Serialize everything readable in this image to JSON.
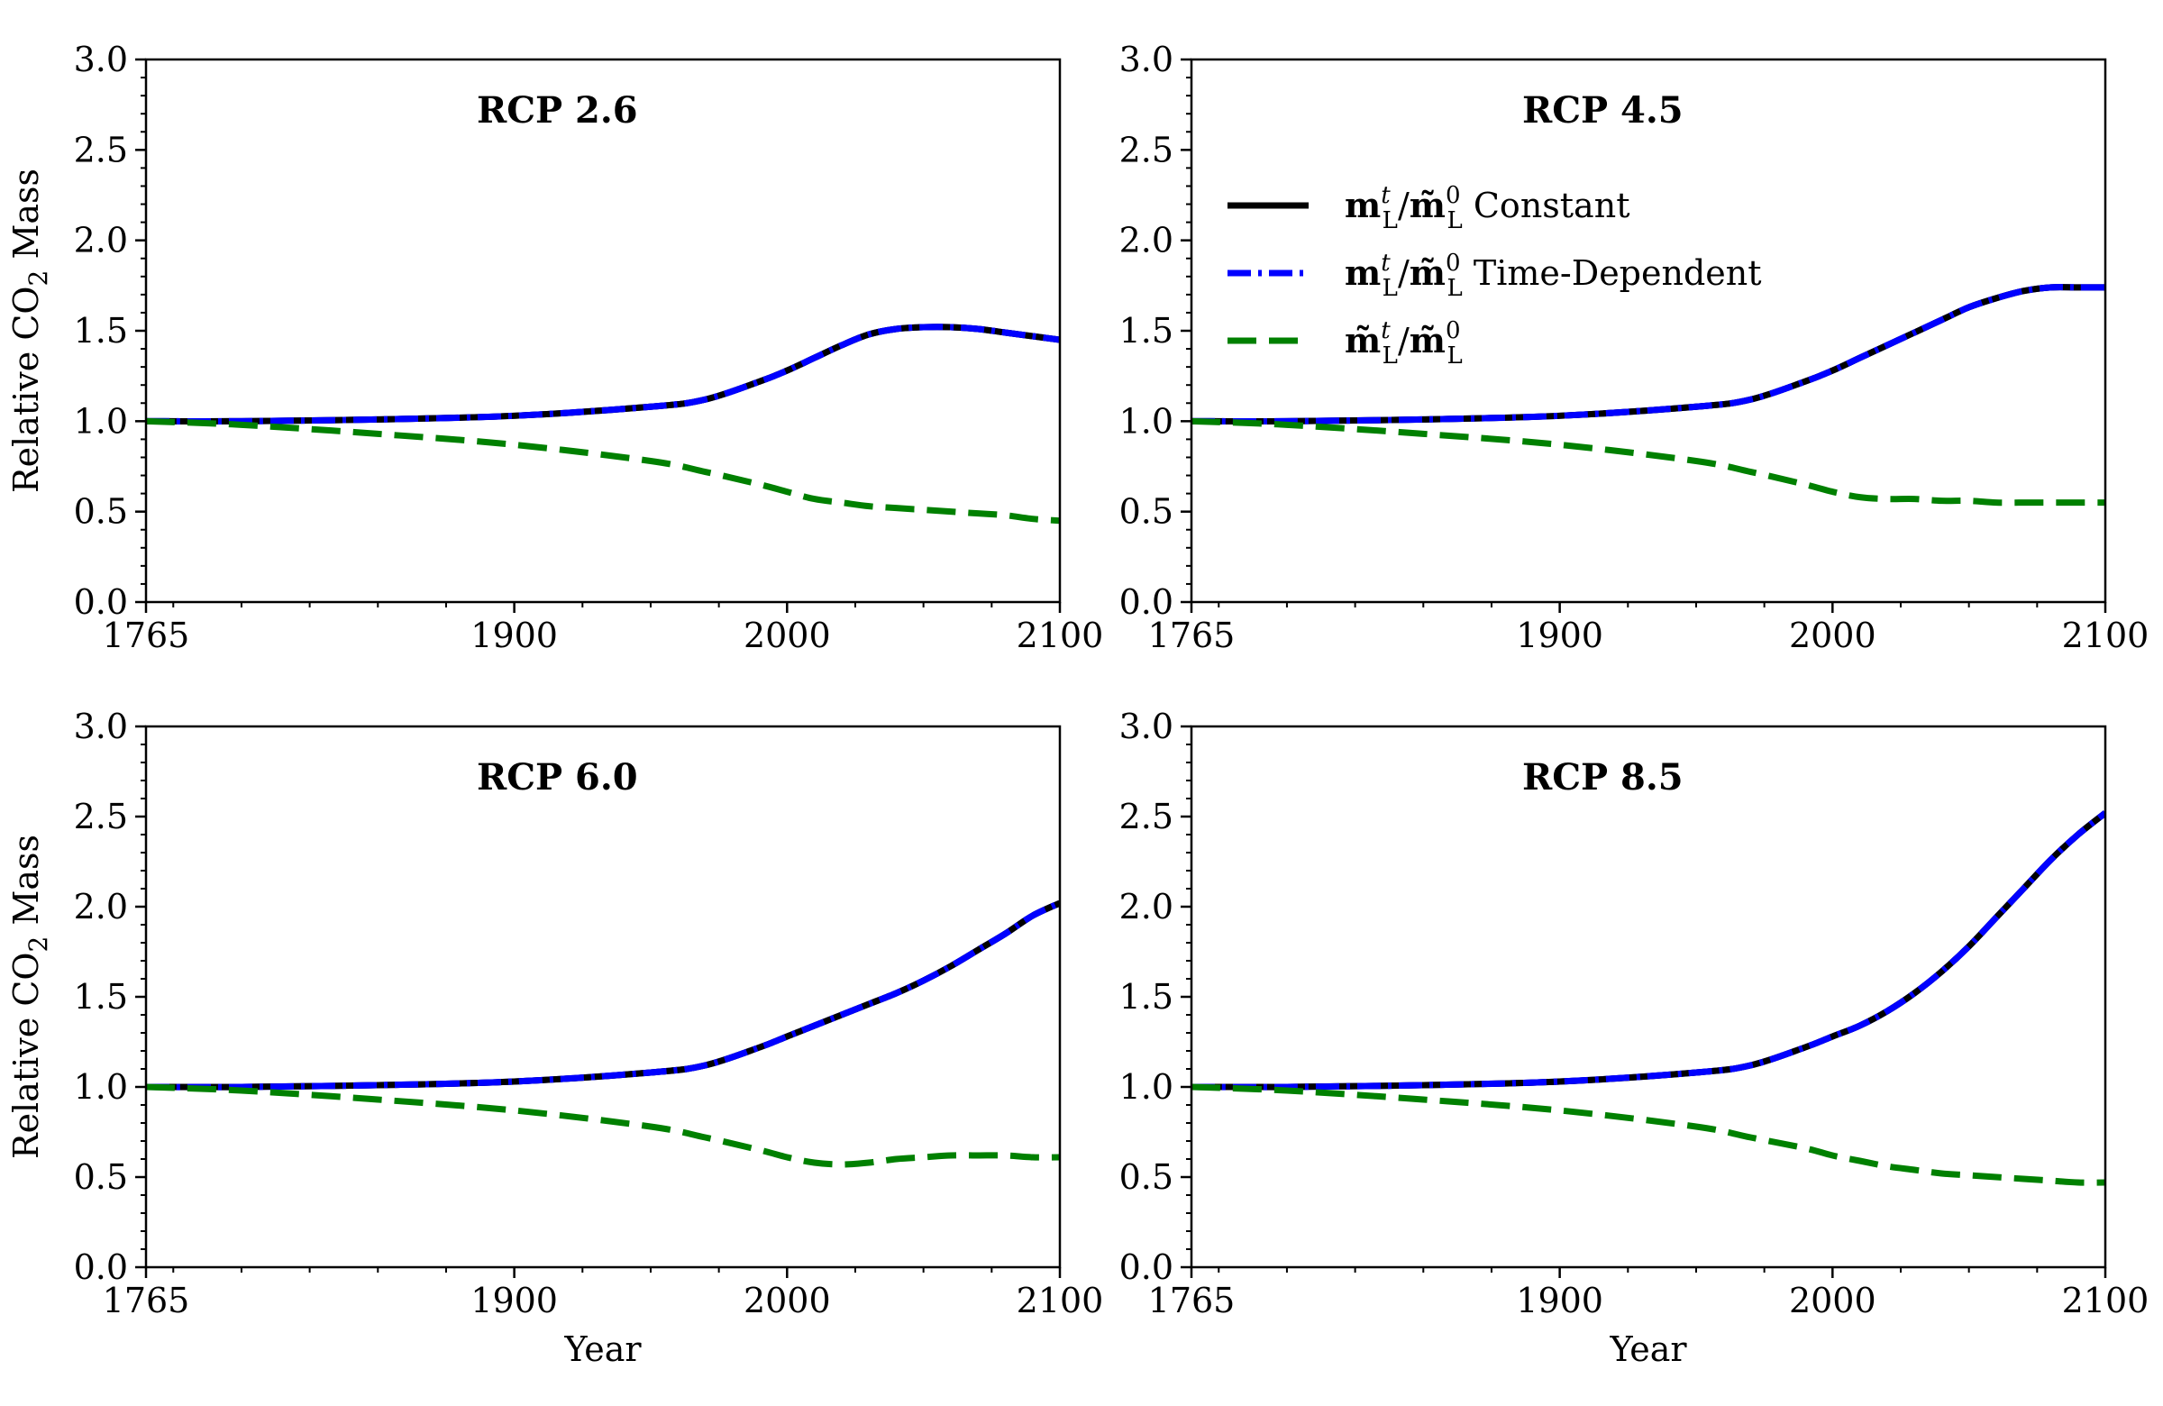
{
  "colors": {
    "constant": "#000000",
    "time_dependent": "#0000ff",
    "ratio": "#008000",
    "axis": "#000000",
    "background": "#ffffff"
  },
  "legend": {
    "items": [
      {
        "series": "constant",
        "math": "m_L^t / m~_L^0",
        "suffix": " Constant"
      },
      {
        "series": "time_dependent",
        "math": "m_L^t / m~_L^0",
        "suffix": " Time-Dependent"
      },
      {
        "series": "ratio",
        "math": "m~_L^t / m~_L^0",
        "suffix": ""
      }
    ],
    "placement": "upper-left of RCP 4.5 panel"
  },
  "chart_data": [
    {
      "type": "line",
      "title": "RCP 2.6",
      "xlabel": "",
      "ylabel": "Relative CO2 Mass",
      "ylabel_main": "Relative CO",
      "ylabel_sub": "2",
      "ylabel_tail": " Mass",
      "xlim": [
        1765,
        2100
      ],
      "ylim": [
        0.0,
        3.0
      ],
      "xticks": [
        1765,
        1900,
        2000,
        2100
      ],
      "yticks": [
        "0.0",
        "0.5",
        "1.0",
        "1.5",
        "2.0",
        "2.5",
        "3.0"
      ],
      "x": [
        1765,
        1800,
        1850,
        1900,
        1950,
        1970,
        1990,
        2000,
        2010,
        2020,
        2030,
        2040,
        2050,
        2060,
        2070,
        2080,
        2090,
        2100
      ],
      "series": [
        {
          "name": "m_L^t/m~_L^0 Constant",
          "key": "constant",
          "values": [
            1.0,
            1.0,
            1.01,
            1.03,
            1.08,
            1.12,
            1.22,
            1.28,
            1.35,
            1.42,
            1.48,
            1.51,
            1.52,
            1.52,
            1.51,
            1.49,
            1.47,
            1.45
          ]
        },
        {
          "name": "m_L^t/m~_L^0 Time-Dependent",
          "key": "time_dependent",
          "values": [
            1.0,
            1.0,
            1.01,
            1.03,
            1.08,
            1.12,
            1.22,
            1.28,
            1.35,
            1.42,
            1.48,
            1.51,
            1.52,
            1.52,
            1.51,
            1.49,
            1.47,
            1.45
          ]
        },
        {
          "name": "m~_L^t/m~_L^0",
          "key": "ratio",
          "values": [
            1.0,
            0.98,
            0.93,
            0.87,
            0.78,
            0.72,
            0.65,
            0.61,
            0.57,
            0.55,
            0.53,
            0.52,
            0.51,
            0.5,
            0.49,
            0.48,
            0.46,
            0.45
          ]
        }
      ]
    },
    {
      "type": "line",
      "title": "RCP 4.5",
      "xlabel": "",
      "ylabel": "",
      "xlim": [
        1765,
        2100
      ],
      "ylim": [
        0.0,
        3.0
      ],
      "xticks": [
        1765,
        1900,
        2000,
        2100
      ],
      "yticks": [
        "0.0",
        "0.5",
        "1.0",
        "1.5",
        "2.0",
        "2.5",
        "3.0"
      ],
      "x": [
        1765,
        1800,
        1850,
        1900,
        1950,
        1970,
        1990,
        2000,
        2010,
        2020,
        2030,
        2040,
        2050,
        2060,
        2070,
        2080,
        2090,
        2100
      ],
      "series": [
        {
          "name": "m_L^t/m~_L^0 Constant",
          "key": "constant",
          "values": [
            1.0,
            1.0,
            1.01,
            1.03,
            1.08,
            1.12,
            1.22,
            1.28,
            1.35,
            1.42,
            1.49,
            1.56,
            1.63,
            1.68,
            1.72,
            1.74,
            1.74,
            1.74
          ]
        },
        {
          "name": "m_L^t/m~_L^0 Time-Dependent",
          "key": "time_dependent",
          "values": [
            1.0,
            1.0,
            1.01,
            1.03,
            1.08,
            1.12,
            1.22,
            1.28,
            1.35,
            1.42,
            1.49,
            1.56,
            1.63,
            1.68,
            1.72,
            1.74,
            1.74,
            1.74
          ]
        },
        {
          "name": "m~_L^t/m~_L^0",
          "key": "ratio",
          "values": [
            1.0,
            0.98,
            0.93,
            0.87,
            0.78,
            0.72,
            0.65,
            0.61,
            0.58,
            0.57,
            0.57,
            0.56,
            0.56,
            0.55,
            0.55,
            0.55,
            0.55,
            0.55
          ]
        }
      ]
    },
    {
      "type": "line",
      "title": "RCP 6.0",
      "xlabel": "Year",
      "ylabel": "Relative CO2 Mass",
      "ylabel_main": "Relative CO",
      "ylabel_sub": "2",
      "ylabel_tail": " Mass",
      "xlim": [
        1765,
        2100
      ],
      "ylim": [
        0.0,
        3.0
      ],
      "xticks": [
        1765,
        1900,
        2000,
        2100
      ],
      "yticks": [
        "0.0",
        "0.5",
        "1.0",
        "1.5",
        "2.0",
        "2.5",
        "3.0"
      ],
      "x": [
        1765,
        1800,
        1850,
        1900,
        1950,
        1970,
        1990,
        2000,
        2010,
        2020,
        2030,
        2040,
        2050,
        2060,
        2070,
        2080,
        2090,
        2100
      ],
      "series": [
        {
          "name": "m_L^t/m~_L^0 Constant",
          "key": "constant",
          "values": [
            1.0,
            1.0,
            1.01,
            1.03,
            1.08,
            1.12,
            1.22,
            1.28,
            1.34,
            1.4,
            1.46,
            1.52,
            1.59,
            1.67,
            1.76,
            1.85,
            1.95,
            2.02
          ]
        },
        {
          "name": "m_L^t/m~_L^0 Time-Dependent",
          "key": "time_dependent",
          "values": [
            1.0,
            1.0,
            1.01,
            1.03,
            1.08,
            1.12,
            1.22,
            1.28,
            1.34,
            1.4,
            1.46,
            1.52,
            1.59,
            1.67,
            1.76,
            1.85,
            1.95,
            2.02
          ]
        },
        {
          "name": "m~_L^t/m~_L^0",
          "key": "ratio",
          "values": [
            1.0,
            0.98,
            0.93,
            0.87,
            0.78,
            0.72,
            0.65,
            0.61,
            0.58,
            0.57,
            0.58,
            0.6,
            0.61,
            0.62,
            0.62,
            0.62,
            0.61,
            0.61
          ]
        }
      ]
    },
    {
      "type": "line",
      "title": "RCP 8.5",
      "xlabel": "Year",
      "ylabel": "",
      "xlim": [
        1765,
        2100
      ],
      "ylim": [
        0.0,
        3.0
      ],
      "xticks": [
        1765,
        1900,
        2000,
        2100
      ],
      "yticks": [
        "0.0",
        "0.5",
        "1.0",
        "1.5",
        "2.0",
        "2.5",
        "3.0"
      ],
      "x": [
        1765,
        1800,
        1850,
        1900,
        1950,
        1970,
        1990,
        2000,
        2010,
        2020,
        2030,
        2040,
        2050,
        2060,
        2070,
        2080,
        2090,
        2100
      ],
      "series": [
        {
          "name": "m_L^t/m~_L^0 Constant",
          "key": "constant",
          "values": [
            1.0,
            1.0,
            1.01,
            1.03,
            1.08,
            1.12,
            1.22,
            1.28,
            1.34,
            1.42,
            1.52,
            1.64,
            1.78,
            1.94,
            2.1,
            2.26,
            2.4,
            2.52
          ]
        },
        {
          "name": "m_L^t/m~_L^0 Time-Dependent",
          "key": "time_dependent",
          "values": [
            1.0,
            1.0,
            1.01,
            1.03,
            1.08,
            1.12,
            1.22,
            1.28,
            1.34,
            1.42,
            1.52,
            1.64,
            1.78,
            1.94,
            2.1,
            2.26,
            2.4,
            2.52
          ]
        },
        {
          "name": "m~_L^t/m~_L^0",
          "key": "ratio",
          "values": [
            1.0,
            0.98,
            0.93,
            0.87,
            0.78,
            0.72,
            0.66,
            0.62,
            0.59,
            0.56,
            0.54,
            0.52,
            0.51,
            0.5,
            0.49,
            0.48,
            0.47,
            0.47
          ]
        }
      ]
    }
  ]
}
